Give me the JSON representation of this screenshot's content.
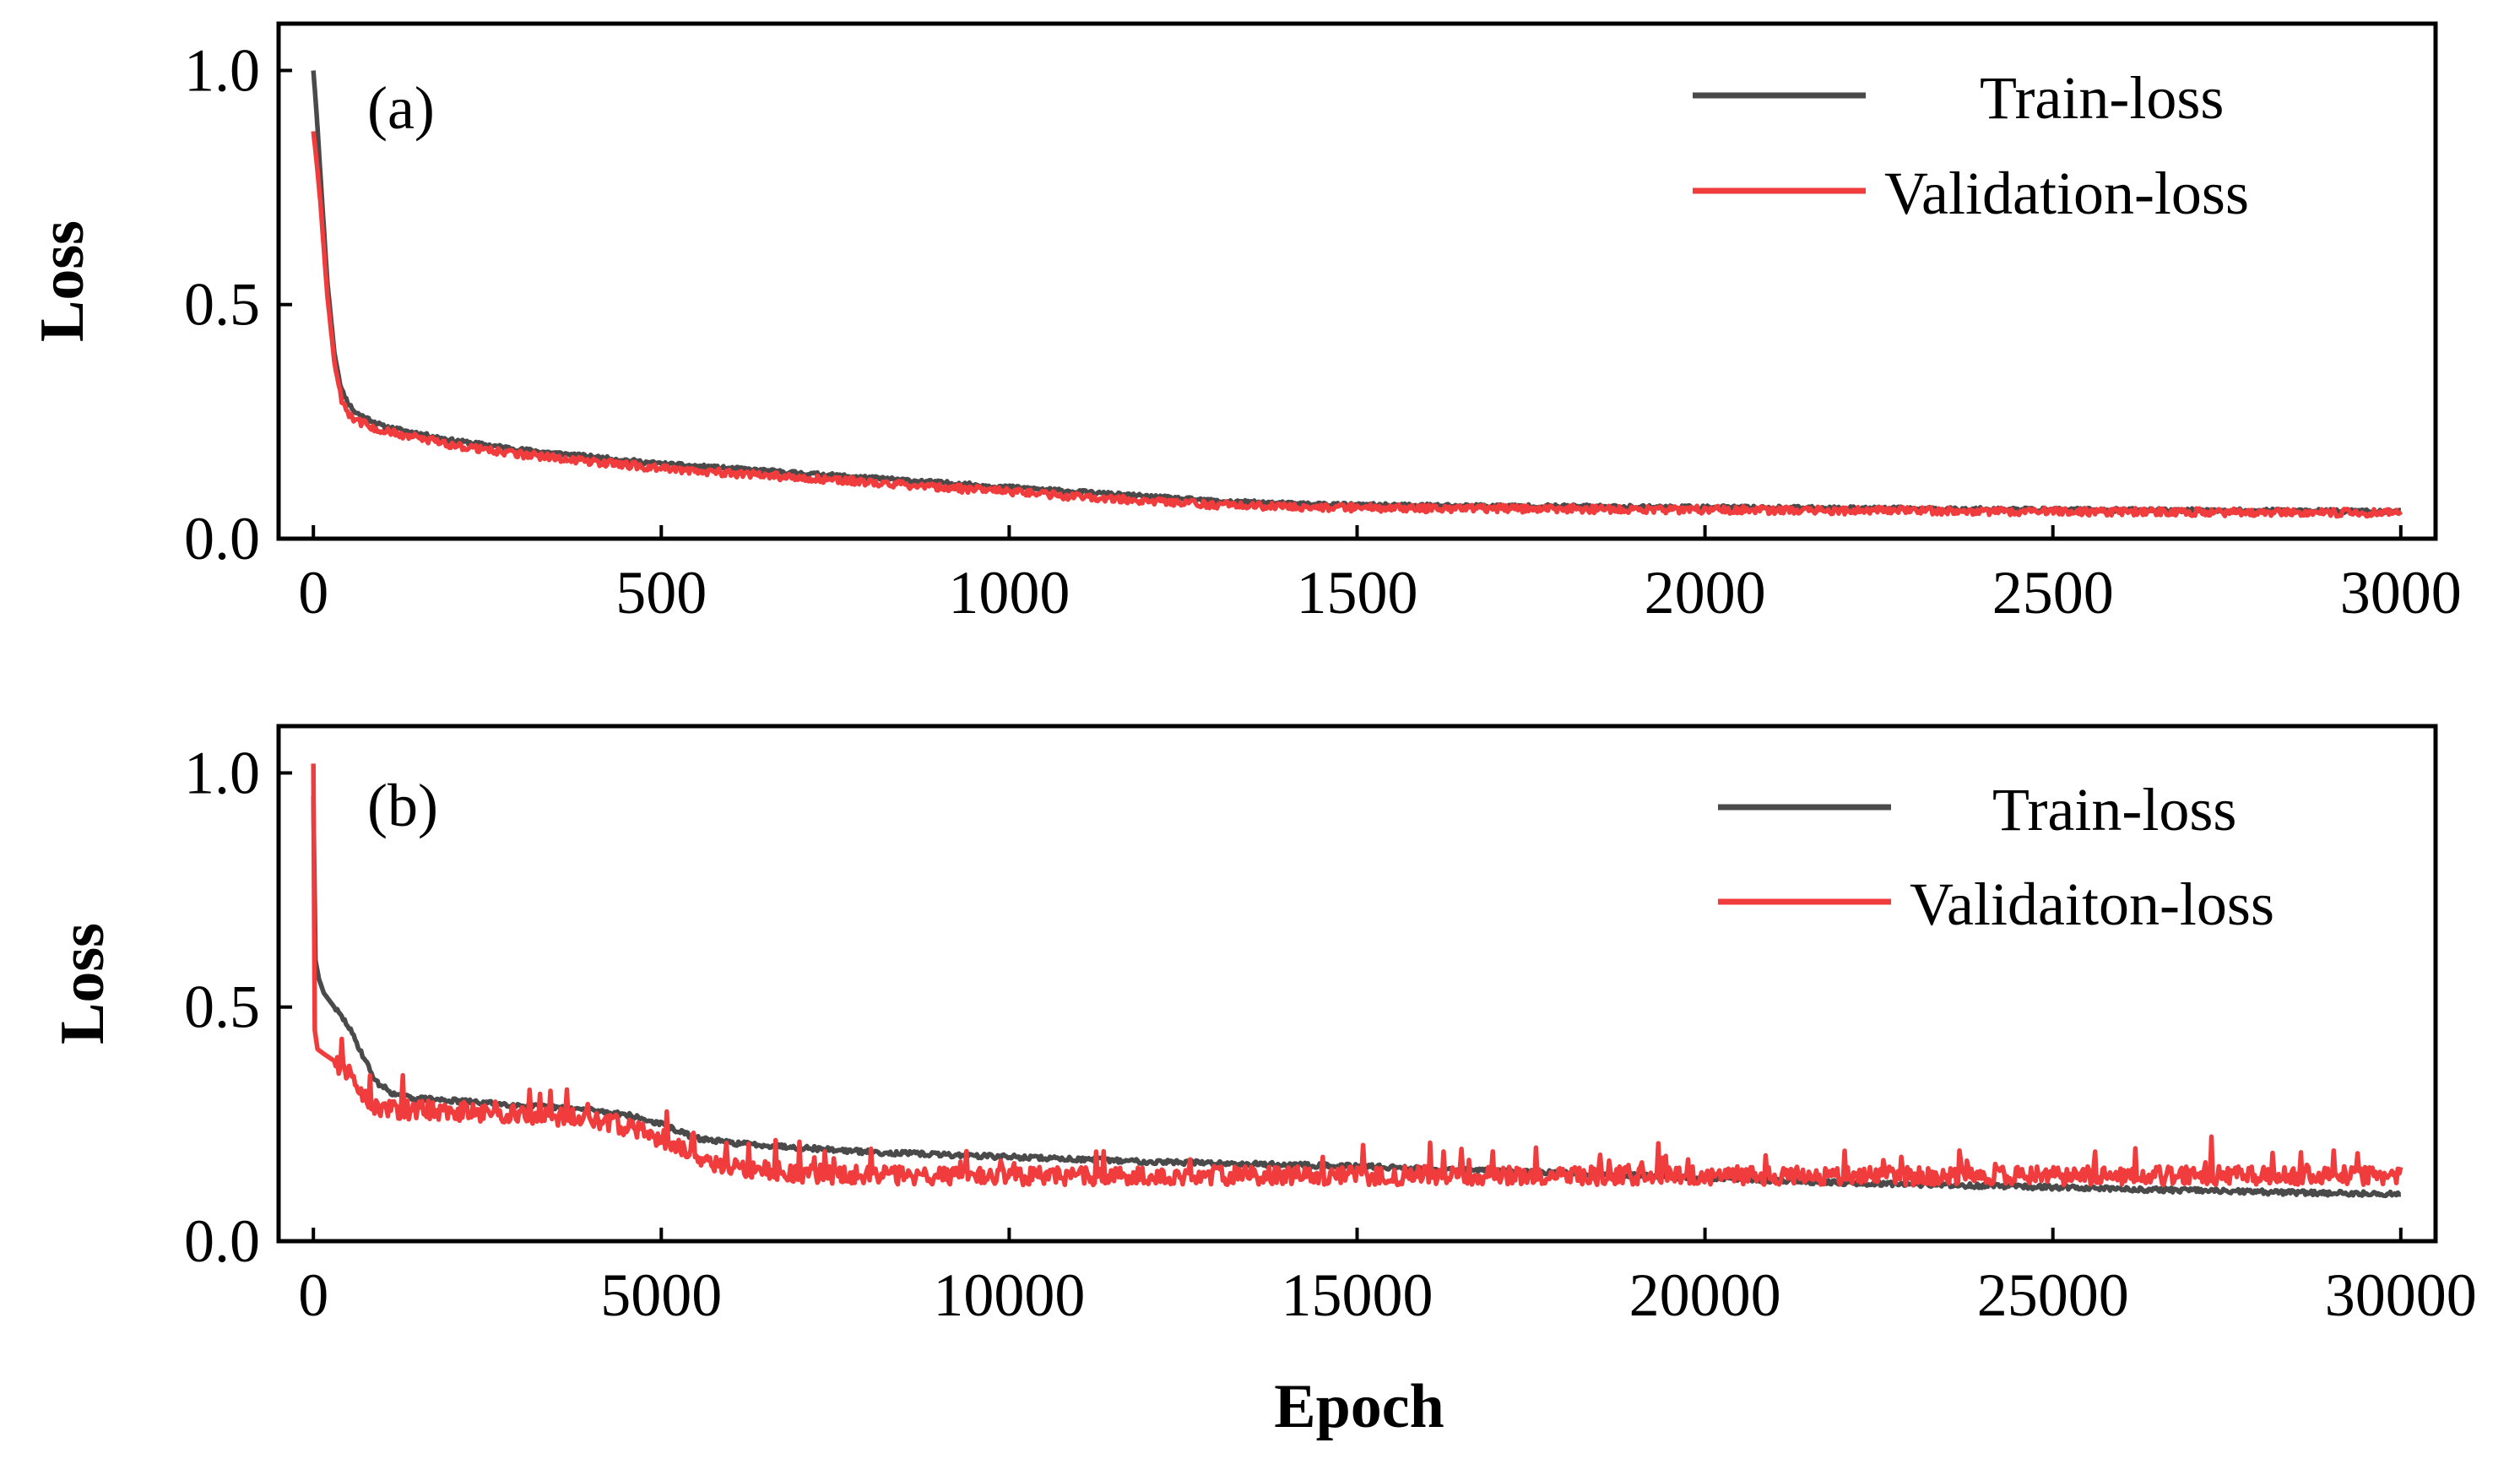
{
  "figure": {
    "xlabel": "Epoch"
  },
  "colors": {
    "train": "#4a4a4a",
    "validation": "#f03c3c",
    "axis": "#000000",
    "background": "#ffffff"
  },
  "chart_data": [
    {
      "type": "line",
      "panel_label": "(a)",
      "title": "",
      "xlabel": "Epoch",
      "ylabel": "Loss",
      "xlim": [
        -50,
        3050
      ],
      "ylim": [
        0.0,
        1.1
      ],
      "xticks": [
        0,
        500,
        1000,
        1500,
        2000,
        2500,
        3000
      ],
      "xtick_labels": [
        "0",
        "500",
        "1000",
        "1500",
        "2000",
        "2500",
        "3000"
      ],
      "yticks": [
        0.0,
        0.5,
        1.0
      ],
      "ytick_labels": [
        "0.0",
        "0.5",
        "1.0"
      ],
      "grid": false,
      "legend_position": "top-right",
      "series": [
        {
          "name": "Train-loss",
          "color_key": "train",
          "noise": 0.004,
          "x": [
            0,
            5,
            10,
            20,
            30,
            40,
            50,
            60,
            80,
            100,
            150,
            200,
            300,
            400,
            500,
            600,
            700,
            800,
            900,
            1000,
            1100,
            1200,
            1300,
            1400,
            1500,
            1700,
            2000,
            2200,
            2500,
            2800,
            3000
          ],
          "y": [
            1.0,
            0.9,
            0.78,
            0.55,
            0.4,
            0.32,
            0.29,
            0.27,
            0.255,
            0.24,
            0.225,
            0.21,
            0.19,
            0.175,
            0.16,
            0.15,
            0.14,
            0.13,
            0.12,
            0.11,
            0.1,
            0.09,
            0.08,
            0.075,
            0.072,
            0.07,
            0.067,
            0.065,
            0.062,
            0.06,
            0.058
          ]
        },
        {
          "name": "Validation-loss",
          "color_key": "validation",
          "noise": 0.008,
          "x": [
            0,
            5,
            10,
            20,
            30,
            40,
            50,
            60,
            80,
            100,
            150,
            200,
            300,
            400,
            500,
            600,
            700,
            800,
            900,
            1000,
            1100,
            1200,
            1300,
            1400,
            1500,
            1700,
            2000,
            2200,
            2500,
            2800,
            3000
          ],
          "y": [
            0.87,
            0.8,
            0.72,
            0.52,
            0.38,
            0.3,
            0.27,
            0.255,
            0.24,
            0.23,
            0.215,
            0.2,
            0.18,
            0.165,
            0.15,
            0.14,
            0.13,
            0.12,
            0.11,
            0.1,
            0.09,
            0.08,
            0.072,
            0.068,
            0.066,
            0.064,
            0.062,
            0.06,
            0.058,
            0.056,
            0.055
          ]
        }
      ]
    },
    {
      "type": "line",
      "panel_label": "(b)",
      "title": "",
      "xlabel": "Epoch",
      "ylabel": "Loss",
      "xlim": [
        -500,
        30500
      ],
      "ylim": [
        0.0,
        1.1
      ],
      "xticks": [
        0,
        5000,
        10000,
        15000,
        20000,
        25000,
        30000
      ],
      "xtick_labels": [
        "0",
        "5000",
        "10000",
        "15000",
        "20000",
        "25000",
        "30000"
      ],
      "yticks": [
        0.0,
        0.5,
        1.0
      ],
      "ytick_labels": [
        "0.0",
        "0.5",
        "1.0"
      ],
      "grid": false,
      "legend_position": "top-right",
      "series": [
        {
          "name": "Train-loss",
          "color_key": "train",
          "noise": 0.005,
          "x": [
            0,
            30,
            80,
            150,
            300,
            500,
            700,
            900,
            1200,
            1500,
            2000,
            3000,
            4000,
            4500,
            5000,
            5500,
            6000,
            7000,
            8000,
            9000,
            10000,
            12000,
            15000,
            18000,
            20000,
            22000,
            25000,
            28000,
            30000
          ],
          "y": [
            0.95,
            0.6,
            0.56,
            0.53,
            0.5,
            0.46,
            0.4,
            0.34,
            0.31,
            0.305,
            0.3,
            0.29,
            0.28,
            0.27,
            0.25,
            0.22,
            0.21,
            0.2,
            0.19,
            0.185,
            0.18,
            0.17,
            0.16,
            0.145,
            0.135,
            0.125,
            0.115,
            0.105,
            0.1
          ]
        },
        {
          "name": "Validaiton-loss",
          "color_key": "validation",
          "noise": 0.02,
          "spikes": true,
          "x": [
            0,
            20,
            60,
            150,
            300,
            500,
            700,
            900,
            1200,
            1500,
            2000,
            3000,
            4000,
            4500,
            5000,
            5500,
            6000,
            7000,
            8000,
            9000,
            10000,
            12000,
            15000,
            18000,
            20000,
            22000,
            25000,
            28000,
            30000
          ],
          "y": [
            1.02,
            0.45,
            0.41,
            0.4,
            0.385,
            0.36,
            0.32,
            0.285,
            0.28,
            0.28,
            0.275,
            0.27,
            0.26,
            0.245,
            0.22,
            0.18,
            0.16,
            0.145,
            0.14,
            0.14,
            0.14,
            0.14,
            0.14,
            0.14,
            0.14,
            0.14,
            0.14,
            0.14,
            0.14
          ]
        }
      ]
    }
  ]
}
